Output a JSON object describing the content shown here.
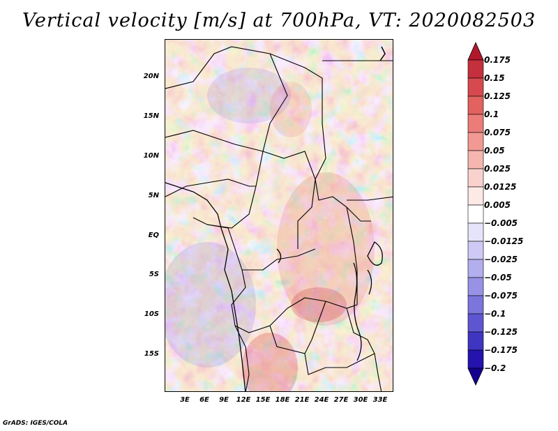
{
  "title": "Vertical velocity [m/s] at 700hPa, VT: 2020082503",
  "credit": "GrADS: IGES/COLA",
  "map": {
    "region": "Central Africa",
    "lon_range": [
      0,
      35
    ],
    "lat_range": [
      -20,
      25
    ],
    "lat_ticks": [
      "20N",
      "15N",
      "10N",
      "5N",
      "EQ",
      "5S",
      "10S",
      "15S"
    ],
    "lon_ticks": [
      "3E",
      "6E",
      "9E",
      "12E",
      "15E",
      "18E",
      "21E",
      "24E",
      "27E",
      "30E",
      "33E"
    ]
  },
  "colorbar": {
    "levels": [
      "0.175",
      "0.15",
      "0.125",
      "0.1",
      "0.075",
      "0.05",
      "0.025",
      "0.0125",
      "0.005",
      "−0.005",
      "−0.0125",
      "−0.025",
      "−0.05",
      "−0.075",
      "−0.1",
      "−0.125",
      "−0.175",
      "−0.2"
    ],
    "colors": [
      "#b2182b",
      "#c4303c",
      "#d6494e",
      "#e2625f",
      "#ec7c78",
      "#f29993",
      "#f6b6b0",
      "#fad2cd",
      "#fde9e6",
      "#ffffff",
      "#e6e4fb",
      "#cecaf5",
      "#b3aeee",
      "#9892e6",
      "#7b75dc",
      "#5e56d0",
      "#3e35c1",
      "#2413ad",
      "#12008f"
    ]
  }
}
